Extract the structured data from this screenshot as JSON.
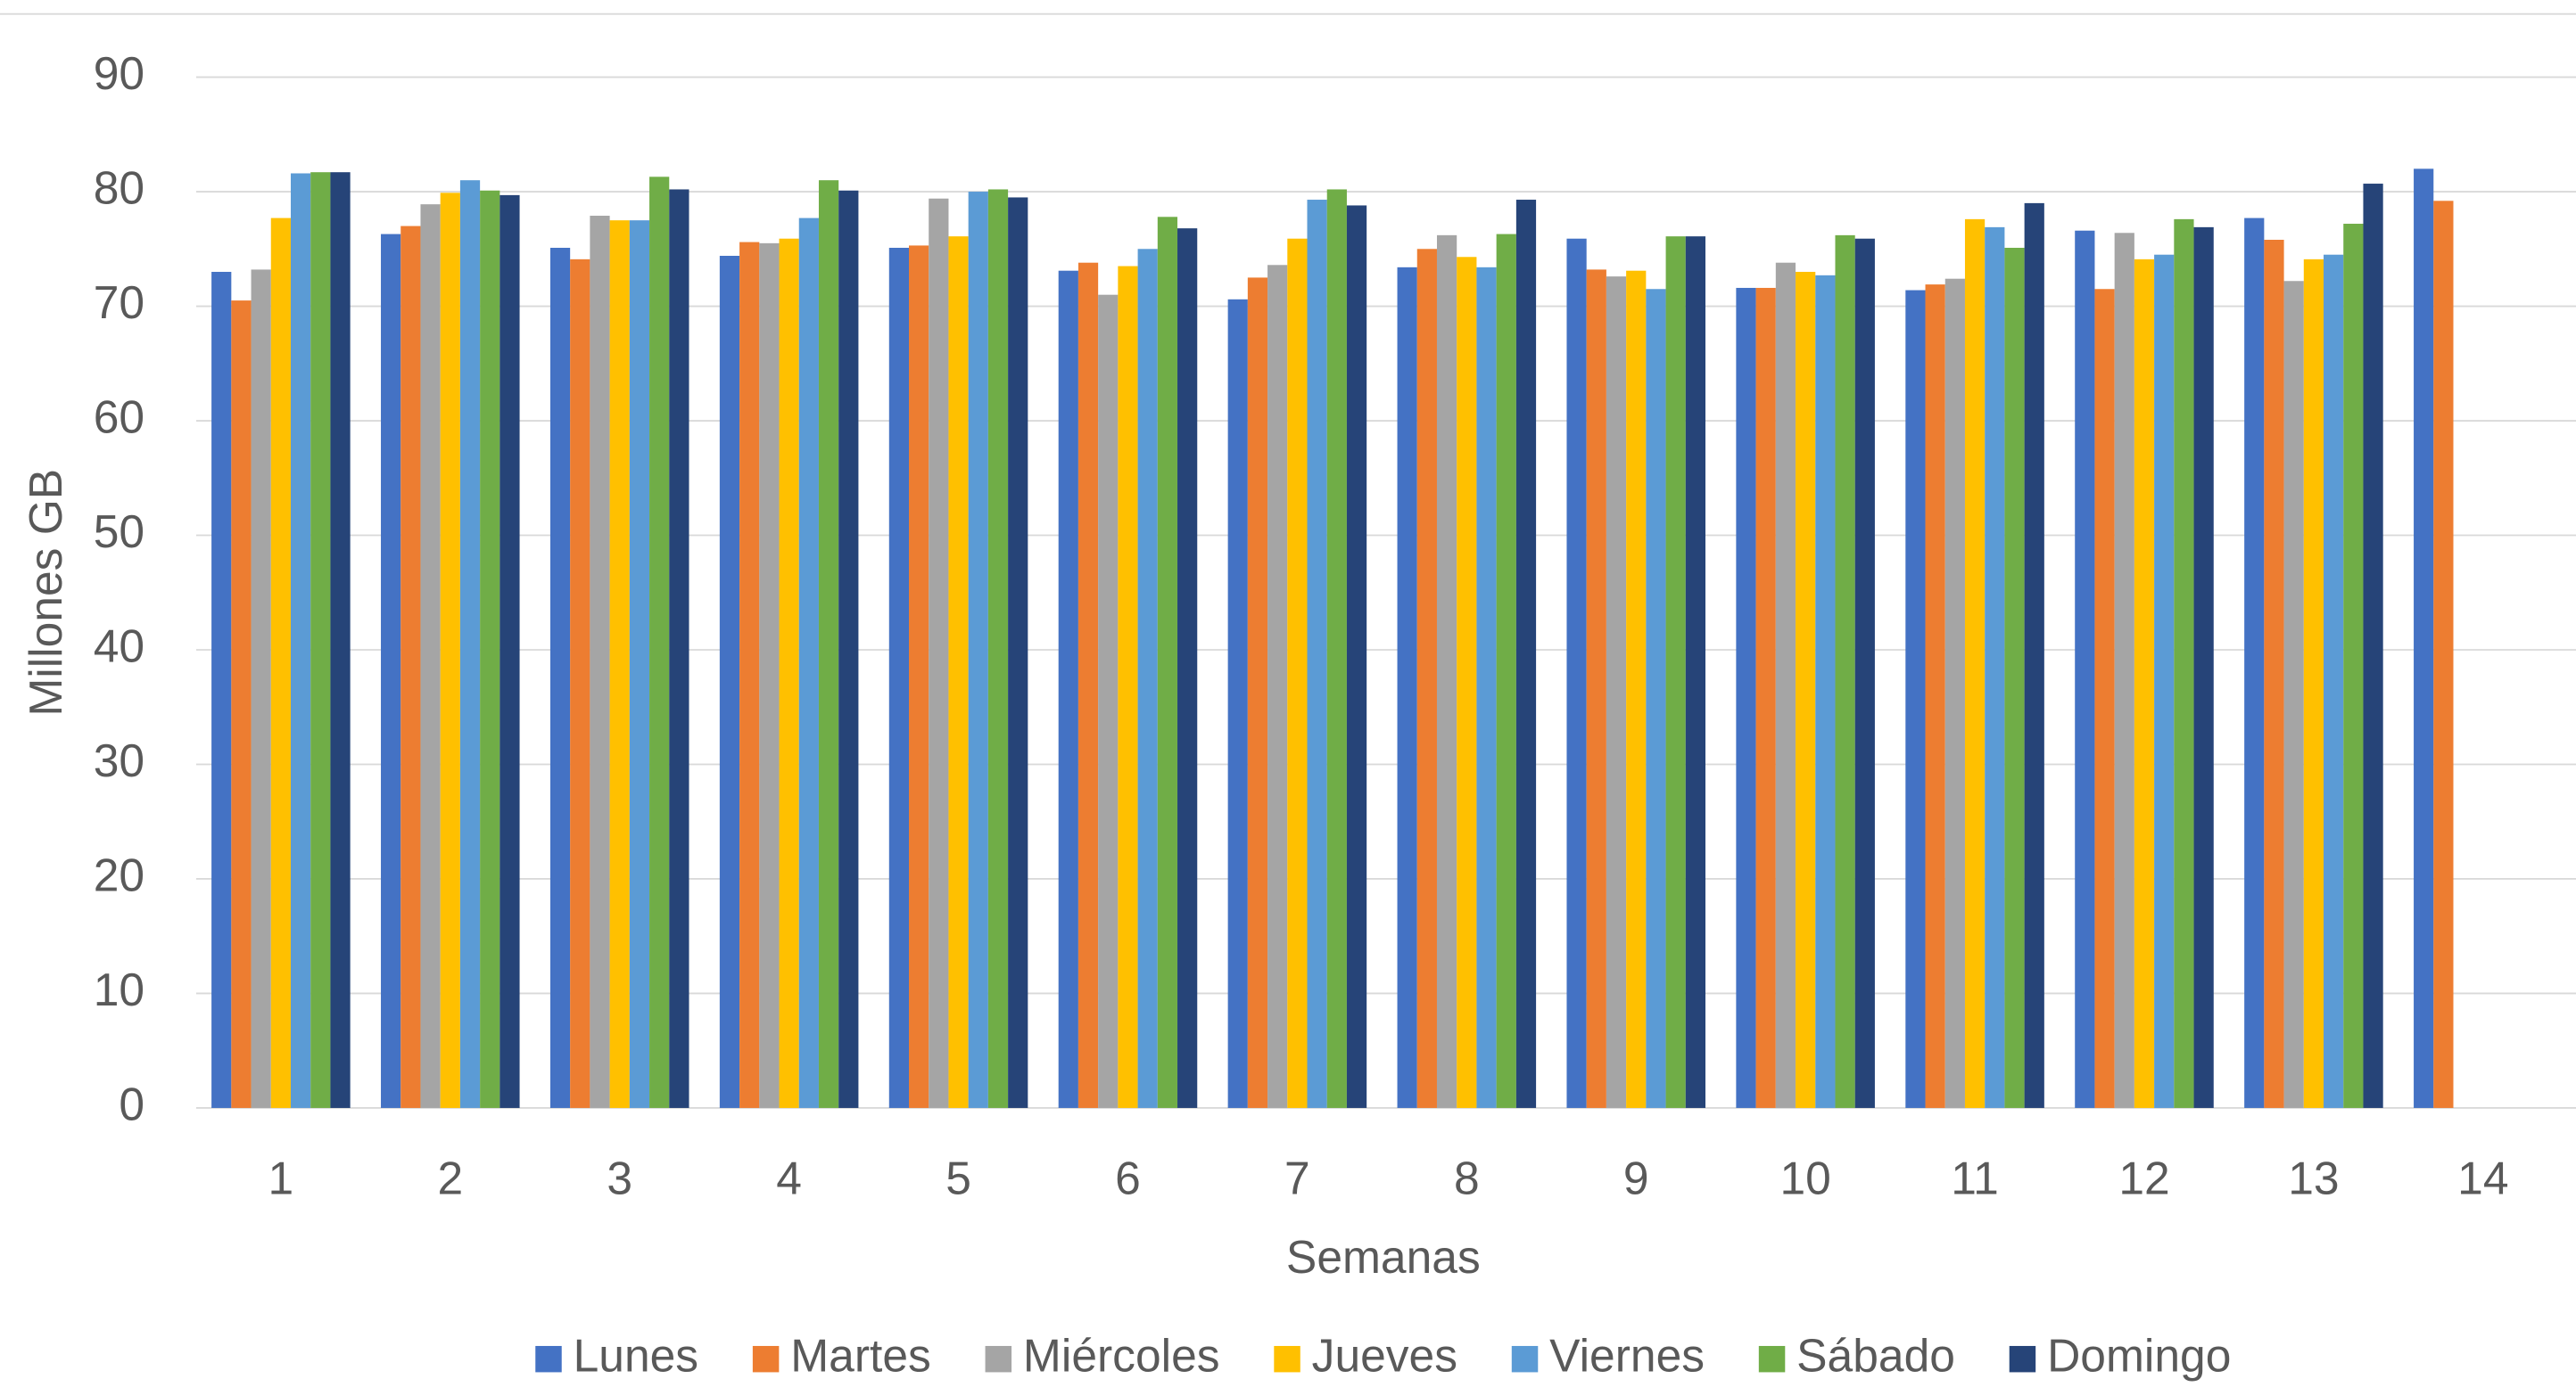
{
  "chart_data": {
    "type": "bar",
    "x_label": "Semanas",
    "y_label": "Millones GB",
    "categories": [
      "1",
      "2",
      "3",
      "4",
      "5",
      "6",
      "7",
      "8",
      "9",
      "10",
      "11",
      "12",
      "13",
      "14"
    ],
    "series": [
      {
        "name": "Lunes",
        "color": "#4472c4",
        "values": [
          73.0,
          76.3,
          75.1,
          74.4,
          75.1,
          73.1,
          70.6,
          73.4,
          75.9,
          71.6,
          71.4,
          76.6,
          77.7,
          82.0
        ]
      },
      {
        "name": "Martes",
        "color": "#ed7d31",
        "values": [
          70.5,
          77.0,
          74.1,
          75.6,
          75.3,
          73.8,
          72.5,
          75.0,
          73.2,
          71.6,
          71.9,
          71.5,
          75.8,
          79.2
        ]
      },
      {
        "name": "Miércoles",
        "color": "#a5a5a5",
        "values": [
          73.2,
          78.9,
          77.9,
          75.5,
          79.4,
          71.0,
          73.6,
          76.2,
          72.6,
          73.8,
          72.4,
          76.4,
          72.2,
          null
        ]
      },
      {
        "name": "Jueves",
        "color": "#ffc000",
        "values": [
          77.7,
          79.9,
          77.5,
          75.9,
          76.1,
          73.5,
          75.9,
          74.3,
          73.1,
          73.0,
          77.6,
          74.1,
          74.1,
          null
        ]
      },
      {
        "name": "Viernes",
        "color": "#5b9bd5",
        "values": [
          81.6,
          81.0,
          77.5,
          77.7,
          80.0,
          75.0,
          79.3,
          73.4,
          71.5,
          72.7,
          76.9,
          74.5,
          74.5,
          null
        ]
      },
      {
        "name": "Sábado",
        "color": "#70ad47",
        "values": [
          81.7,
          80.1,
          81.3,
          81.0,
          80.2,
          77.8,
          80.2,
          76.3,
          76.1,
          76.2,
          75.1,
          77.6,
          77.2,
          null
        ]
      },
      {
        "name": "Domingo",
        "color": "#264478",
        "values": [
          81.7,
          79.7,
          80.2,
          80.1,
          79.5,
          76.8,
          78.8,
          79.3,
          76.1,
          75.9,
          79.0,
          76.9,
          80.7,
          null
        ]
      }
    ],
    "ylim": [
      0,
      90
    ],
    "yticks": [
      0,
      10,
      20,
      30,
      40,
      50,
      60,
      70,
      80,
      90
    ],
    "grid": true,
    "legend": "bottom"
  }
}
